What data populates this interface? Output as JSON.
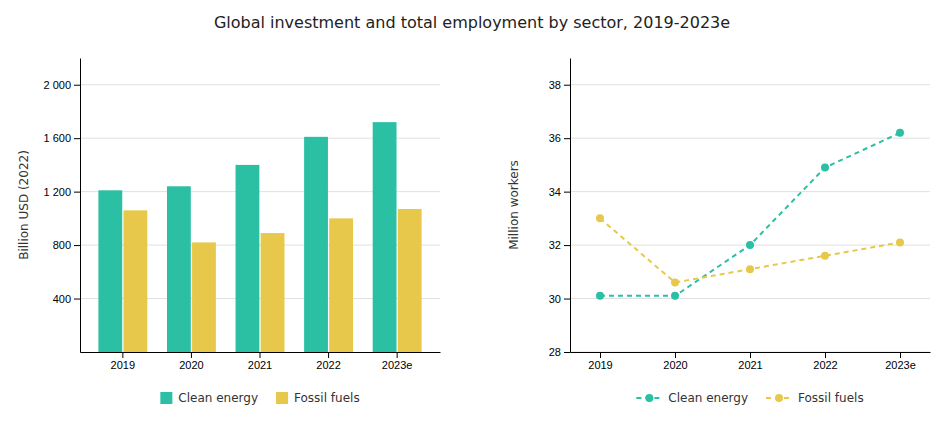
{
  "title": "Global investment and total employment by sector, 2019-2023e",
  "chart_data": [
    {
      "type": "bar",
      "categories": [
        "2019",
        "2020",
        "2021",
        "2022",
        "2023e"
      ],
      "series": [
        {
          "name": "Clean energy",
          "color": "#2BBFA4",
          "values": [
            1210,
            1240,
            1400,
            1610,
            1720
          ]
        },
        {
          "name": "Fossil fuels",
          "color": "#E8C84A",
          "values": [
            1060,
            820,
            890,
            1000,
            1070
          ]
        }
      ],
      "ylabel": "Billion USD (2022)",
      "ylim": [
        0,
        2200
      ],
      "yticks": [
        400,
        800,
        {
          "value": 1200,
          "label": "1 200"
        },
        {
          "value": 1600,
          "label": "1 600"
        },
        {
          "value": 2000,
          "label": "2 000"
        }
      ],
      "grid": true,
      "legend": "bottom"
    },
    {
      "type": "line",
      "categories": [
        "2019",
        "2020",
        "2021",
        "2022",
        "2023e"
      ],
      "series": [
        {
          "name": "Clean energy",
          "color": "#2BBFA4",
          "marker": "circle",
          "line_style": "dashed",
          "values": [
            30.1,
            30.1,
            32.0,
            34.9,
            36.2
          ]
        },
        {
          "name": "Fossil fuels",
          "color": "#E8C84A",
          "marker": "circle",
          "line_style": "dashed",
          "values": [
            33.0,
            30.6,
            31.1,
            31.6,
            32.1
          ]
        }
      ],
      "ylabel": "Million workers",
      "ylim": [
        28,
        39
      ],
      "yticks": [
        28,
        30,
        32,
        34,
        36,
        38
      ],
      "grid": true,
      "legend": "bottom"
    }
  ]
}
